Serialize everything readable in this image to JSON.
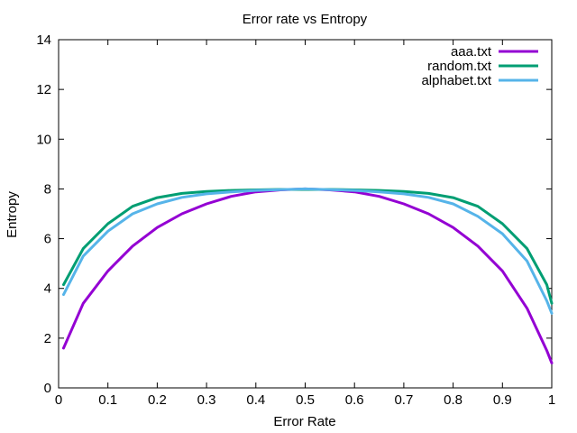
{
  "chart_data": {
    "type": "line",
    "title": "Error rate vs Entropy",
    "xlabel": "Error Rate",
    "ylabel": "Entropy",
    "xlim": [
      0,
      1
    ],
    "ylim": [
      0,
      14
    ],
    "xticks": [
      "0",
      "0.1",
      "0.2",
      "0.3",
      "0.4",
      "0.5",
      "0.6",
      "0.7",
      "0.8",
      "0.9",
      "1"
    ],
    "yticks": [
      "0",
      "2",
      "4",
      "6",
      "8",
      "10",
      "12",
      "14"
    ],
    "grid": false,
    "legend_position": "top-right",
    "x": [
      0.01,
      0.05,
      0.1,
      0.15,
      0.2,
      0.25,
      0.3,
      0.35,
      0.4,
      0.45,
      0.5,
      0.55,
      0.6,
      0.65,
      0.7,
      0.75,
      0.8,
      0.85,
      0.9,
      0.95,
      0.99,
      1.0
    ],
    "series": [
      {
        "name": "aaa.txt",
        "color": "#9400d3",
        "values": [
          1.6,
          3.4,
          4.7,
          5.7,
          6.45,
          7.0,
          7.4,
          7.7,
          7.88,
          7.96,
          8.0,
          7.96,
          7.88,
          7.7,
          7.4,
          7.0,
          6.45,
          5.7,
          4.7,
          3.2,
          1.5,
          1.0
        ]
      },
      {
        "name": "random.txt",
        "color": "#009e73",
        "values": [
          4.15,
          5.6,
          6.6,
          7.3,
          7.65,
          7.82,
          7.9,
          7.94,
          7.96,
          7.98,
          7.98,
          7.98,
          7.96,
          7.94,
          7.9,
          7.82,
          7.65,
          7.3,
          6.6,
          5.6,
          4.15,
          3.4
        ]
      },
      {
        "name": "alphabet.txt",
        "color": "#56b4e9",
        "values": [
          3.75,
          5.3,
          6.3,
          7.0,
          7.4,
          7.66,
          7.8,
          7.88,
          7.94,
          7.97,
          8.0,
          7.97,
          7.94,
          7.88,
          7.8,
          7.66,
          7.4,
          6.9,
          6.2,
          5.1,
          3.5,
          3.0
        ]
      }
    ]
  }
}
